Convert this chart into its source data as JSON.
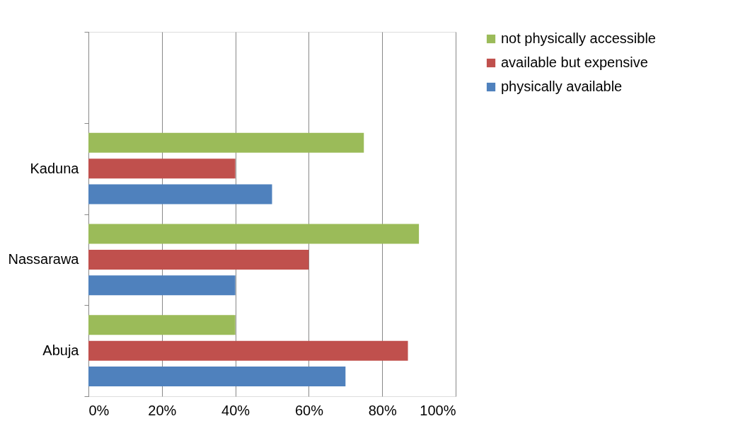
{
  "chart_data": {
    "type": "bar",
    "orientation": "horizontal",
    "categories": [
      null,
      "Kaduna",
      "Nassarawa",
      "Abuja"
    ],
    "series": [
      {
        "name": "not physically accessible",
        "color": "#9bbb59",
        "values": [
          null,
          75,
          90,
          40
        ]
      },
      {
        "name": "available but expensive",
        "color": "#c0504d",
        "values": [
          null,
          40,
          60,
          87
        ]
      },
      {
        "name": "physically available",
        "color": "#4f81bd",
        "values": [
          null,
          50,
          40,
          70
        ]
      }
    ],
    "xlim": [
      0,
      100
    ],
    "xticks": [
      {
        "value": 0,
        "label": "0%"
      },
      {
        "value": 20,
        "label": "20%"
      },
      {
        "value": 40,
        "label": "40%"
      },
      {
        "value": 60,
        "label": "60%"
      },
      {
        "value": 80,
        "label": "80%"
      },
      {
        "value": 100,
        "label": "100%"
      }
    ],
    "grid": "x",
    "legend": "right"
  }
}
